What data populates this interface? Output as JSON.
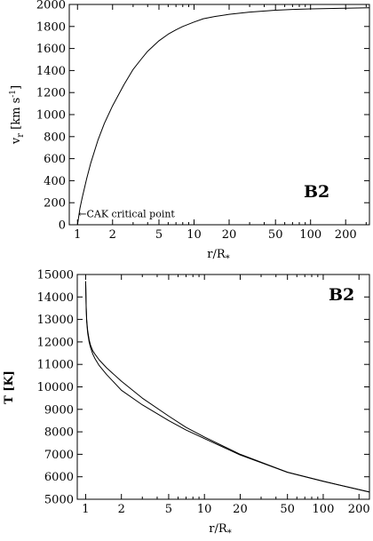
{
  "chart_data": [
    {
      "type": "line",
      "panel_label": "B2",
      "xlabel": "r/R",
      "xlabel_sub": "*",
      "ylabel": "v",
      "ylabel_sub": "r",
      "ylabel_unit": " [km s",
      "ylabel_unit_sup": "-1",
      "ylabel_unit_close": "]",
      "xscale": "log",
      "xlim": [
        0.85,
        320
      ],
      "ylim": [
        0,
        2000
      ],
      "xticks": [
        1,
        2,
        5,
        10,
        20,
        50,
        100,
        200
      ],
      "xtick_labels": [
        "1",
        "2",
        "5",
        "10",
        "20",
        "50",
        "100",
        "200"
      ],
      "yticks": [
        0,
        200,
        400,
        600,
        800,
        1000,
        1200,
        1400,
        1600,
        1800,
        2000
      ],
      "ytick_labels": [
        "0",
        "200",
        "400",
        "600",
        "800",
        "1000",
        "1200",
        "1400",
        "1600",
        "1800",
        "2000"
      ],
      "annotation": "←CAK critical point",
      "annotation_at": [
        1.0,
        100
      ],
      "series": [
        {
          "x": [
            1.0,
            1.05,
            1.1,
            1.2,
            1.3,
            1.5,
            1.7,
            2.0,
            2.5,
            3.0,
            3.5,
            4.0,
            5.0,
            6.0,
            7.0,
            8.0,
            10,
            12,
            15,
            20,
            30,
            50,
            70,
            100,
            200,
            320
          ],
          "y": [
            0,
            150,
            250,
            420,
            560,
            770,
            920,
            1080,
            1270,
            1410,
            1500,
            1575,
            1670,
            1730,
            1770,
            1800,
            1840,
            1870,
            1890,
            1910,
            1930,
            1948,
            1955,
            1960,
            1966,
            1970
          ]
        }
      ]
    },
    {
      "type": "line",
      "panel_label": "B2",
      "xlabel": "r/R",
      "xlabel_sub": "*",
      "ylabel": "T [K]",
      "xscale": "log",
      "xlim": [
        0.85,
        245
      ],
      "ylim": [
        5000,
        15000
      ],
      "xticks": [
        1,
        2,
        5,
        10,
        20,
        50,
        100,
        200
      ],
      "xtick_labels": [
        "1",
        "2",
        "5",
        "10",
        "20",
        "50",
        "100",
        "200"
      ],
      "yticks": [
        5000,
        6000,
        7000,
        8000,
        9000,
        10000,
        11000,
        12000,
        13000,
        14000,
        15000
      ],
      "ytick_labels": [
        "5000",
        "6000",
        "7000",
        "8000",
        "9000",
        "10000",
        "11000",
        "12000",
        "13000",
        "14000",
        "15000"
      ],
      "series": [
        {
          "x": [
            1.0,
            1.01,
            1.02,
            1.04,
            1.07,
            1.1,
            1.15,
            1.2,
            1.3,
            1.5,
            2.0,
            3.0,
            5.0,
            7.0,
            10,
            20,
            50,
            100,
            245
          ],
          "y": [
            14700,
            13600,
            13000,
            12500,
            12100,
            11850,
            11600,
            11450,
            11200,
            10850,
            10250,
            9500,
            8700,
            8200,
            7770,
            7000,
            6200,
            5800,
            5320
          ]
        },
        {
          "x": [
            1.0,
            1.01,
            1.02,
            1.04,
            1.07,
            1.1,
            1.15,
            1.2,
            1.3,
            1.5,
            2.0,
            3.0,
            5.0,
            7.0,
            10,
            20,
            50,
            100,
            245
          ],
          "y": [
            14700,
            13500,
            12900,
            12400,
            12000,
            11750,
            11450,
            11250,
            10950,
            10550,
            9850,
            9200,
            8500,
            8080,
            7700,
            6970,
            6200,
            5800,
            5320
          ]
        }
      ]
    }
  ]
}
